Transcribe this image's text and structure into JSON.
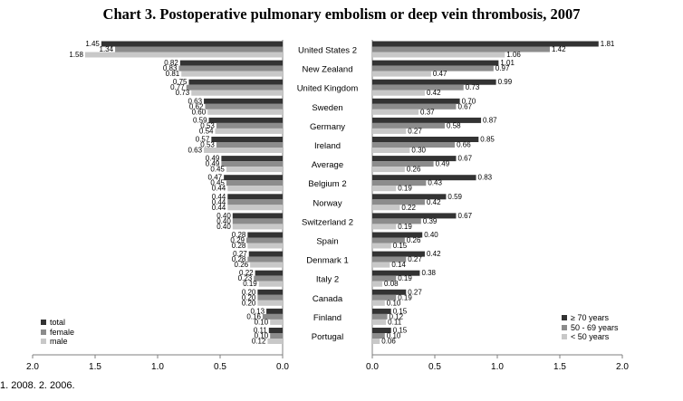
{
  "title": "Chart 3. Postoperative pulmonary embolism or deep vein thrombosis, 2007",
  "footnote": "1. 2008. 2. 2006.",
  "colors": {
    "total": "#333333",
    "female": "#8c8c8c",
    "male": "#c8c8c8",
    "axis": "#7f7f7f"
  },
  "chart_data": [
    {
      "type": "bar",
      "orientation": "horizontal",
      "direction": "reversed",
      "categories": [
        "United States 2",
        "New Zealand",
        "United Kingdom",
        "Sweden",
        "Germany",
        "Ireland",
        "Average",
        "Belgium 2",
        "Norway",
        "Switzerland 2",
        "Spain",
        "Denmark 1",
        "Italy 2",
        "Canada",
        "Finland",
        "Portugal"
      ],
      "series": [
        {
          "name": "total",
          "values": [
            1.45,
            0.82,
            0.75,
            0.63,
            0.59,
            0.57,
            0.49,
            0.47,
            0.44,
            0.4,
            0.28,
            0.27,
            0.22,
            0.2,
            0.13,
            0.11
          ]
        },
        {
          "name": "female",
          "values": [
            1.34,
            0.83,
            0.77,
            0.62,
            0.53,
            0.53,
            0.49,
            0.45,
            0.44,
            0.4,
            0.29,
            0.28,
            0.23,
            0.2,
            0.16,
            0.1
          ]
        },
        {
          "name": "male",
          "values": [
            1.58,
            0.81,
            0.73,
            0.6,
            0.54,
            0.63,
            0.45,
            0.44,
            0.44,
            0.4,
            0.28,
            0.26,
            0.19,
            0.2,
            0.1,
            0.12
          ]
        }
      ],
      "xlim": [
        0,
        2.0
      ],
      "ticks": [
        "2.0",
        "1.5",
        "1.0",
        "0.5",
        "0.0"
      ],
      "legend_position": "bottom-left"
    },
    {
      "type": "bar",
      "orientation": "horizontal",
      "categories": [
        "United States 2",
        "New Zealand",
        "United Kingdom",
        "Sweden",
        "Germany",
        "Ireland",
        "Average",
        "Belgium 2",
        "Norway",
        "Switzerland 2",
        "Spain",
        "Denmark 1",
        "Italy 2",
        "Canada",
        "Finland",
        "Portugal"
      ],
      "series": [
        {
          "name": "≥ 70 years",
          "values": [
            1.81,
            1.01,
            0.99,
            0.7,
            0.87,
            0.85,
            0.67,
            0.83,
            0.59,
            0.67,
            0.4,
            0.42,
            0.38,
            0.27,
            0.15,
            0.15
          ]
        },
        {
          "name": "50 - 69 years",
          "values": [
            1.42,
            0.97,
            0.73,
            0.67,
            0.58,
            0.66,
            0.49,
            0.43,
            0.42,
            0.39,
            0.26,
            0.27,
            0.19,
            0.19,
            0.12,
            0.1
          ]
        },
        {
          "name": "< 50 years",
          "values": [
            1.06,
            0.47,
            0.42,
            0.37,
            0.27,
            0.3,
            0.26,
            0.19,
            0.22,
            0.19,
            0.15,
            0.14,
            0.08,
            0.1,
            0.11,
            0.06
          ]
        }
      ],
      "xlim": [
        0,
        2.0
      ],
      "ticks": [
        "0.0",
        "0.5",
        "1.0",
        "1.5",
        "2.0"
      ],
      "legend_position": "bottom-right"
    }
  ]
}
